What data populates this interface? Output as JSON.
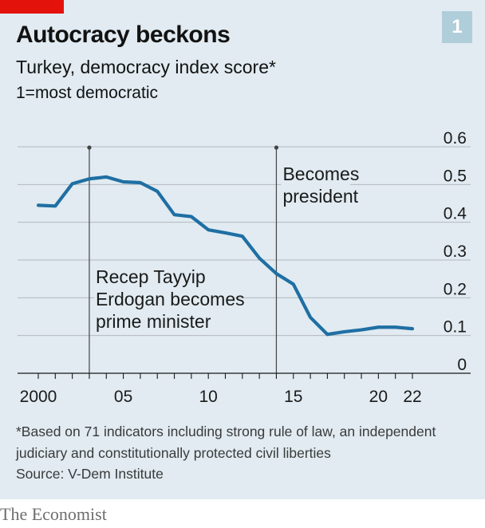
{
  "header": {
    "chart_number": "1",
    "title": "Autocracy beckons",
    "subtitle": "Turkey, democracy index score*",
    "unit_note": "1=most democratic"
  },
  "footer": {
    "footnote": "*Based on 71 indicators including strong rule of law, an independent judiciary and constitutionally protected civil liberties",
    "source": "Source: V-Dem Institute",
    "brand": "The Economist"
  },
  "colors": {
    "panel": "#e1ebf1",
    "line": "#1f6fa3",
    "accent": "#e3120b",
    "badge": "#b0cdda"
  },
  "chart_data": {
    "type": "line",
    "title": "Autocracy beckons",
    "subtitle": "Turkey, democracy index score*",
    "ylabel": "",
    "xlabel": "",
    "x": [
      2000,
      2001,
      2002,
      2003,
      2004,
      2005,
      2006,
      2007,
      2008,
      2009,
      2010,
      2011,
      2012,
      2013,
      2014,
      2015,
      2016,
      2017,
      2018,
      2019,
      2020,
      2021,
      2022
    ],
    "series": [
      {
        "values": [
          0.445,
          0.443,
          0.502,
          0.515,
          0.52,
          0.507,
          0.505,
          0.482,
          0.42,
          0.415,
          0.38,
          0.372,
          0.363,
          0.305,
          0.264,
          0.236,
          0.148,
          0.103,
          0.11,
          0.115,
          0.122,
          0.122,
          0.118
        ]
      }
    ],
    "xlim": [
      2000,
      2022
    ],
    "ylim": [
      0,
      0.6
    ],
    "y_ticks": [
      {
        "value": 0,
        "label": "0"
      },
      {
        "value": 0.1,
        "label": "0.1"
      },
      {
        "value": 0.2,
        "label": "0.2"
      },
      {
        "value": 0.3,
        "label": "0.3"
      },
      {
        "value": 0.4,
        "label": "0.4"
      },
      {
        "value": 0.5,
        "label": "0.5"
      },
      {
        "value": 0.6,
        "label": "0.6"
      }
    ],
    "x_ticks": [
      {
        "value": 2000,
        "label": "2000"
      },
      {
        "value": 2005,
        "label": "05"
      },
      {
        "value": 2010,
        "label": "10"
      },
      {
        "value": 2015,
        "label": "15"
      },
      {
        "value": 2020,
        "label": "20"
      },
      {
        "value": 2022,
        "label": "22"
      }
    ],
    "grid": true,
    "annotations": [
      {
        "x": 2003,
        "lines": [
          "Recep Tayyip",
          "Erdogan becomes",
          "prime minister"
        ]
      },
      {
        "x": 2014,
        "lines": [
          "Becomes",
          "president"
        ]
      }
    ]
  }
}
